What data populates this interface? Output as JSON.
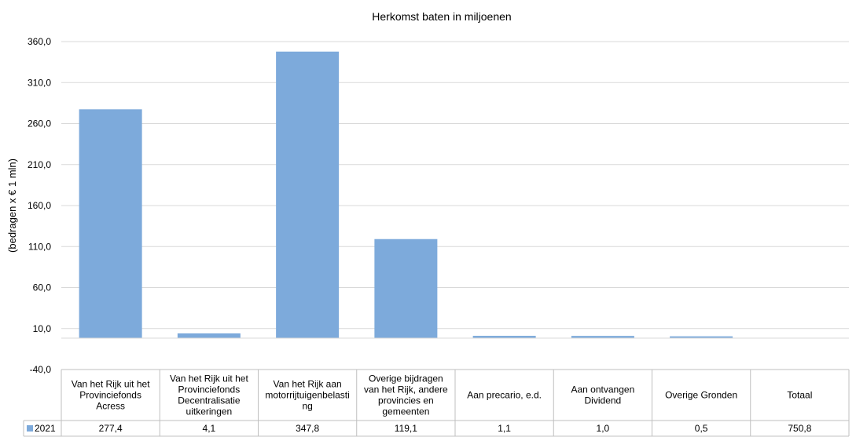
{
  "chart_data": {
    "type": "bar",
    "title": "Herkomst baten in miljoenen",
    "ylabel": "(bedragen x € 1 mln)",
    "xlabel": "",
    "ylim": [
      -40,
      360
    ],
    "y_ticks": [
      "360,0",
      "310,0",
      "260,0",
      "210,0",
      "160,0",
      "110,0",
      "60,0",
      "10,0",
      "-40,0"
    ],
    "categories": [
      [
        "Van het Rijk uit het",
        "Provinciefonds",
        "Acress"
      ],
      [
        "Van het Rijk uit het",
        "Provinciefonds",
        "Decentralisatie",
        "uitkeringen"
      ],
      [
        "Van het Rijk aan",
        "motorrijtuigenbelasti",
        "ng"
      ],
      [
        "Overige bijdragen",
        "van het Rijk, andere",
        "provincies en",
        "gemeenten"
      ],
      [
        "Aan precario, e.d."
      ],
      [
        "Aan ontvangen",
        "Dividend"
      ],
      [
        "Overige Gronden"
      ],
      [
        "Totaal"
      ]
    ],
    "series": [
      {
        "name": "2021",
        "color": "#7daadb",
        "values": [
          277.4,
          4.1,
          347.8,
          119.1,
          1.1,
          1.0,
          0.5,
          750.8
        ],
        "value_labels": [
          "277,4",
          "4,1",
          "347,8",
          "119,1",
          "1,1",
          "1,0",
          "0,5",
          "750,8"
        ]
      }
    ],
    "grid": true,
    "legend": "data-table",
    "data_table": true
  }
}
